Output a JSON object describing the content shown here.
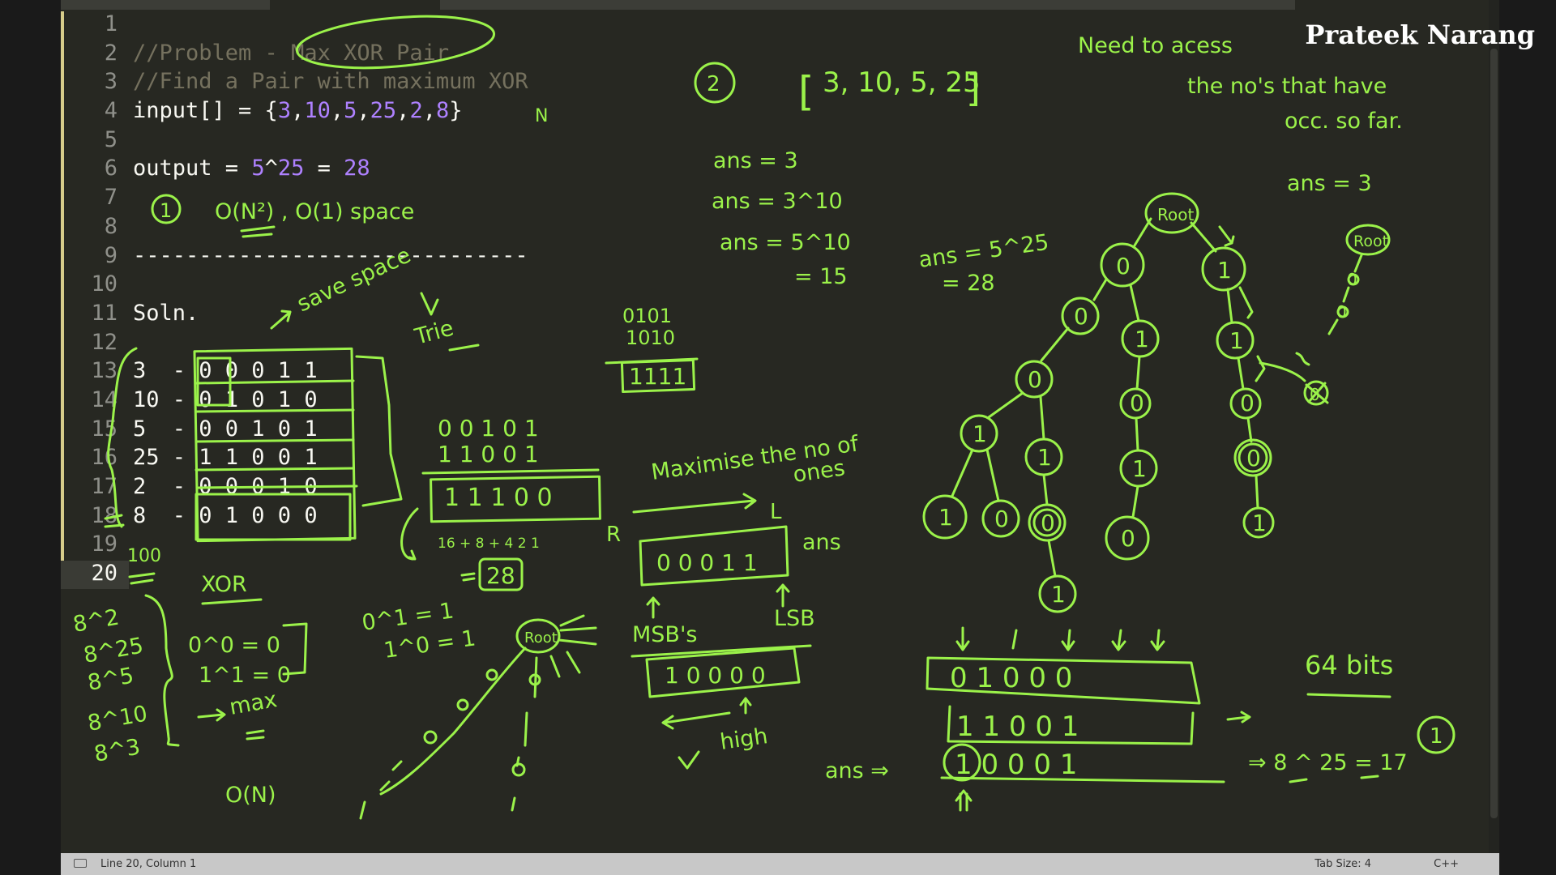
{
  "brand": "Prateek Narang",
  "editor": {
    "current_line": 20,
    "lines": [
      {
        "n": 1,
        "tokens": []
      },
      {
        "n": 2,
        "tokens": [
          {
            "t": "//Problem - Max XOR Pair",
            "c": "cm"
          }
        ]
      },
      {
        "n": 3,
        "tokens": [
          {
            "t": "//Find a Pair with maximum XOR",
            "c": "cm"
          }
        ]
      },
      {
        "n": 4,
        "tokens": [
          {
            "t": "input[] = {",
            "c": "wt"
          },
          {
            "t": "3",
            "c": "nm"
          },
          {
            "t": ",",
            "c": "wt"
          },
          {
            "t": "10",
            "c": "nm"
          },
          {
            "t": ",",
            "c": "wt"
          },
          {
            "t": "5",
            "c": "nm"
          },
          {
            "t": ",",
            "c": "wt"
          },
          {
            "t": "25",
            "c": "nm"
          },
          {
            "t": ",",
            "c": "wt"
          },
          {
            "t": "2",
            "c": "nm"
          },
          {
            "t": ",",
            "c": "wt"
          },
          {
            "t": "8",
            "c": "nm"
          },
          {
            "t": "}",
            "c": "wt"
          }
        ]
      },
      {
        "n": 5,
        "tokens": []
      },
      {
        "n": 6,
        "tokens": [
          {
            "t": "output = ",
            "c": "wt"
          },
          {
            "t": "5",
            "c": "nm"
          },
          {
            "t": "^",
            "c": "wt"
          },
          {
            "t": "25",
            "c": "nm"
          },
          {
            "t": " = ",
            "c": "wt"
          },
          {
            "t": "28",
            "c": "nm"
          }
        ]
      },
      {
        "n": 7,
        "tokens": []
      },
      {
        "n": 8,
        "tokens": []
      },
      {
        "n": 9,
        "tokens": [
          {
            "t": "------------------------------",
            "c": "wt"
          }
        ]
      },
      {
        "n": 10,
        "tokens": []
      },
      {
        "n": 11,
        "tokens": [
          {
            "t": "Soln.",
            "c": "wt"
          }
        ]
      },
      {
        "n": 12,
        "tokens": []
      },
      {
        "n": 13,
        "tokens": [
          {
            "t": "3  - 0 0 0 1 1",
            "c": "wt"
          }
        ]
      },
      {
        "n": 14,
        "tokens": [
          {
            "t": "10 - 0 1 0 1 0",
            "c": "wt"
          }
        ]
      },
      {
        "n": 15,
        "tokens": [
          {
            "t": "5  - 0 0 1 0 1",
            "c": "wt"
          }
        ]
      },
      {
        "n": 16,
        "tokens": [
          {
            "t": "25 - 1 1 0 0 1",
            "c": "wt"
          }
        ]
      },
      {
        "n": 17,
        "tokens": [
          {
            "t": "2  - 0 0 0 1 0",
            "c": "wt"
          }
        ]
      },
      {
        "n": 18,
        "tokens": [
          {
            "t": "8  - 0 1 0 0 0",
            "c": "wt"
          }
        ]
      },
      {
        "n": 19,
        "tokens": []
      },
      {
        "n": 20,
        "tokens": []
      }
    ]
  },
  "annotations": {
    "approach1_num": "1",
    "approach1": "O(N²) , O(1) space",
    "approach2_num": "2",
    "save_space": "save space",
    "trie": "Trie",
    "need1": "Need to acess",
    "need2": "the no's that have",
    "need3": "occ. so far.",
    "arr_open": "[",
    "arr_vals": "3, 10, 5, 25",
    "arr_close": "]",
    "ans_a": "ans = 3",
    "ans_b": "ans = 3^10",
    "ans_c": "ans = 5^10",
    "ans_c2": "= 15",
    "ans_d": "ans = 5^25",
    "ans_d2": "= 28",
    "ans_e": "ans = 3",
    "root1": "Root",
    "root2": "Root",
    "root3": "Root",
    "n_mark": "N",
    "b_top1": "0101",
    "b_top2": "1010",
    "b_top3": "1111",
    "xor_a": "0 0 1 0 1",
    "xor_b": "1 1 0 0 1",
    "xor_r": "1 1 1 0 0",
    "xor_sum": "16 + 8 + 4  2  1",
    "xor_28": "28",
    "maximise1": "Maximise the no of",
    "maximise2": "ones",
    "r_mark": "R",
    "l_mark": "L",
    "ans_bits": "0 0 0 1 1",
    "ans_label": "ans",
    "msb": "MSB's",
    "lsb": "LSB",
    "high_bits": "1 0 0 0 0",
    "high": "high",
    "xor_title": "XOR",
    "hundred": "100",
    "list_1": "8^2",
    "list_2": "8^25",
    "list_3": "8^5",
    "list_4": "8^10",
    "list_5": "8^3",
    "rule_1": "0^0 = 0",
    "rule_2": "1^1 = 0",
    "rule_3": "0^1 = 1",
    "rule_4": "1^0 = 1",
    "max": "max",
    "on": "O(N)",
    "b_row1": "0 1 0 0 0",
    "b_row2": "1 1 0 0 1",
    "b_row3": "1 0 0 0 1",
    "ans_arrow": "ans ⇒",
    "bits64": "64 bits",
    "final": "⇒ 8 ^ 25 = 17",
    "leaf_1": "1",
    "leaf_0": "0"
  },
  "status": {
    "position": "Line 20, Column 1",
    "tab_size": "Tab Size: 4",
    "language": "C++"
  },
  "colors": {
    "background": "#272822",
    "comment": "#75715e",
    "number": "#ae81ff",
    "ink": "#9bf24a",
    "statusbar": "#c8c8c8"
  }
}
